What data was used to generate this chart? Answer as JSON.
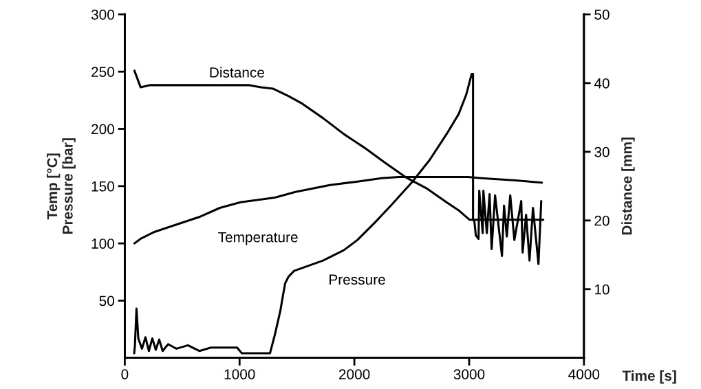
{
  "chart_data": {
    "type": "line",
    "xlabel": "Time [s]",
    "ylabel": "Temp [°C]\nPressure [bar]",
    "y2label": "Distance [mm]",
    "xlim": [
      0,
      4000
    ],
    "xticks": [
      0,
      1000,
      2000,
      3000,
      4000
    ],
    "ylim": [
      0,
      300
    ],
    "yticks": [
      50,
      100,
      150,
      200,
      250,
      300
    ],
    "y2lim": [
      0,
      50
    ],
    "y2ticks": [
      10,
      20,
      30,
      40,
      50
    ],
    "grid": false,
    "legend": false,
    "series": [
      {
        "name": "Distance",
        "color": "#000000",
        "axis": "y2",
        "x": [
          84,
          138,
          216,
          1085,
          1187,
          1290,
          1427,
          1547,
          1727,
          1907,
          2087,
          2267,
          2447,
          2627,
          2807,
          2915,
          3004,
          3646
        ],
        "values": [
          41.8,
          39.4,
          39.7,
          39.7,
          39.4,
          39.2,
          38.1,
          37,
          34.9,
          32.6,
          30.6,
          28.4,
          26.3,
          24.7,
          22.6,
          21.4,
          20.1,
          20.1
        ]
      },
      {
        "name": "Temperature",
        "color": "#000000",
        "axis": "y",
        "x": [
          84,
          138,
          258,
          468,
          648,
          828,
          1008,
          1307,
          1487,
          1787,
          2027,
          2237,
          2387,
          2987,
          3106,
          3406,
          3526,
          3634
        ],
        "values": [
          100,
          104,
          110,
          117,
          123,
          131,
          136,
          140,
          145,
          151,
          154,
          157,
          158,
          158,
          157,
          155,
          154,
          153
        ]
      },
      {
        "name": "Pressure",
        "color": "#000000",
        "axis": "y",
        "x": [
          82,
          88,
          102,
          118,
          150,
          180,
          210,
          240,
          270,
          300,
          330,
          378,
          450,
          550,
          650,
          750,
          846,
          978,
          1020,
          1265,
          1307,
          1355,
          1379,
          1397,
          1427,
          1475,
          1727,
          1907,
          2027,
          2177,
          2327,
          2507,
          2657,
          2807,
          2909,
          2975,
          3022,
          3034,
          3034,
          3046,
          3058,
          3082,
          3088,
          3118,
          3124,
          3154,
          3178,
          3196,
          3226,
          3286,
          3304,
          3328,
          3358,
          3394,
          3454,
          3466,
          3496,
          3526,
          3556,
          3604,
          3628
        ],
        "values": [
          4,
          10,
          43,
          17,
          8,
          18,
          6,
          17,
          7,
          16,
          6,
          12,
          8,
          11,
          6,
          9,
          9,
          9,
          4,
          4,
          20,
          41,
          55,
          65,
          71,
          76,
          85,
          94,
          103,
          118,
          134,
          154,
          173,
          196,
          213,
          230,
          248,
          248,
          121,
          119,
          107,
          104,
          146,
          109,
          146,
          109,
          143,
          95,
          142,
          89,
          133,
          106,
          142,
          103,
          137,
          92,
          125,
          85,
          131,
          82,
          137
        ]
      }
    ]
  }
}
